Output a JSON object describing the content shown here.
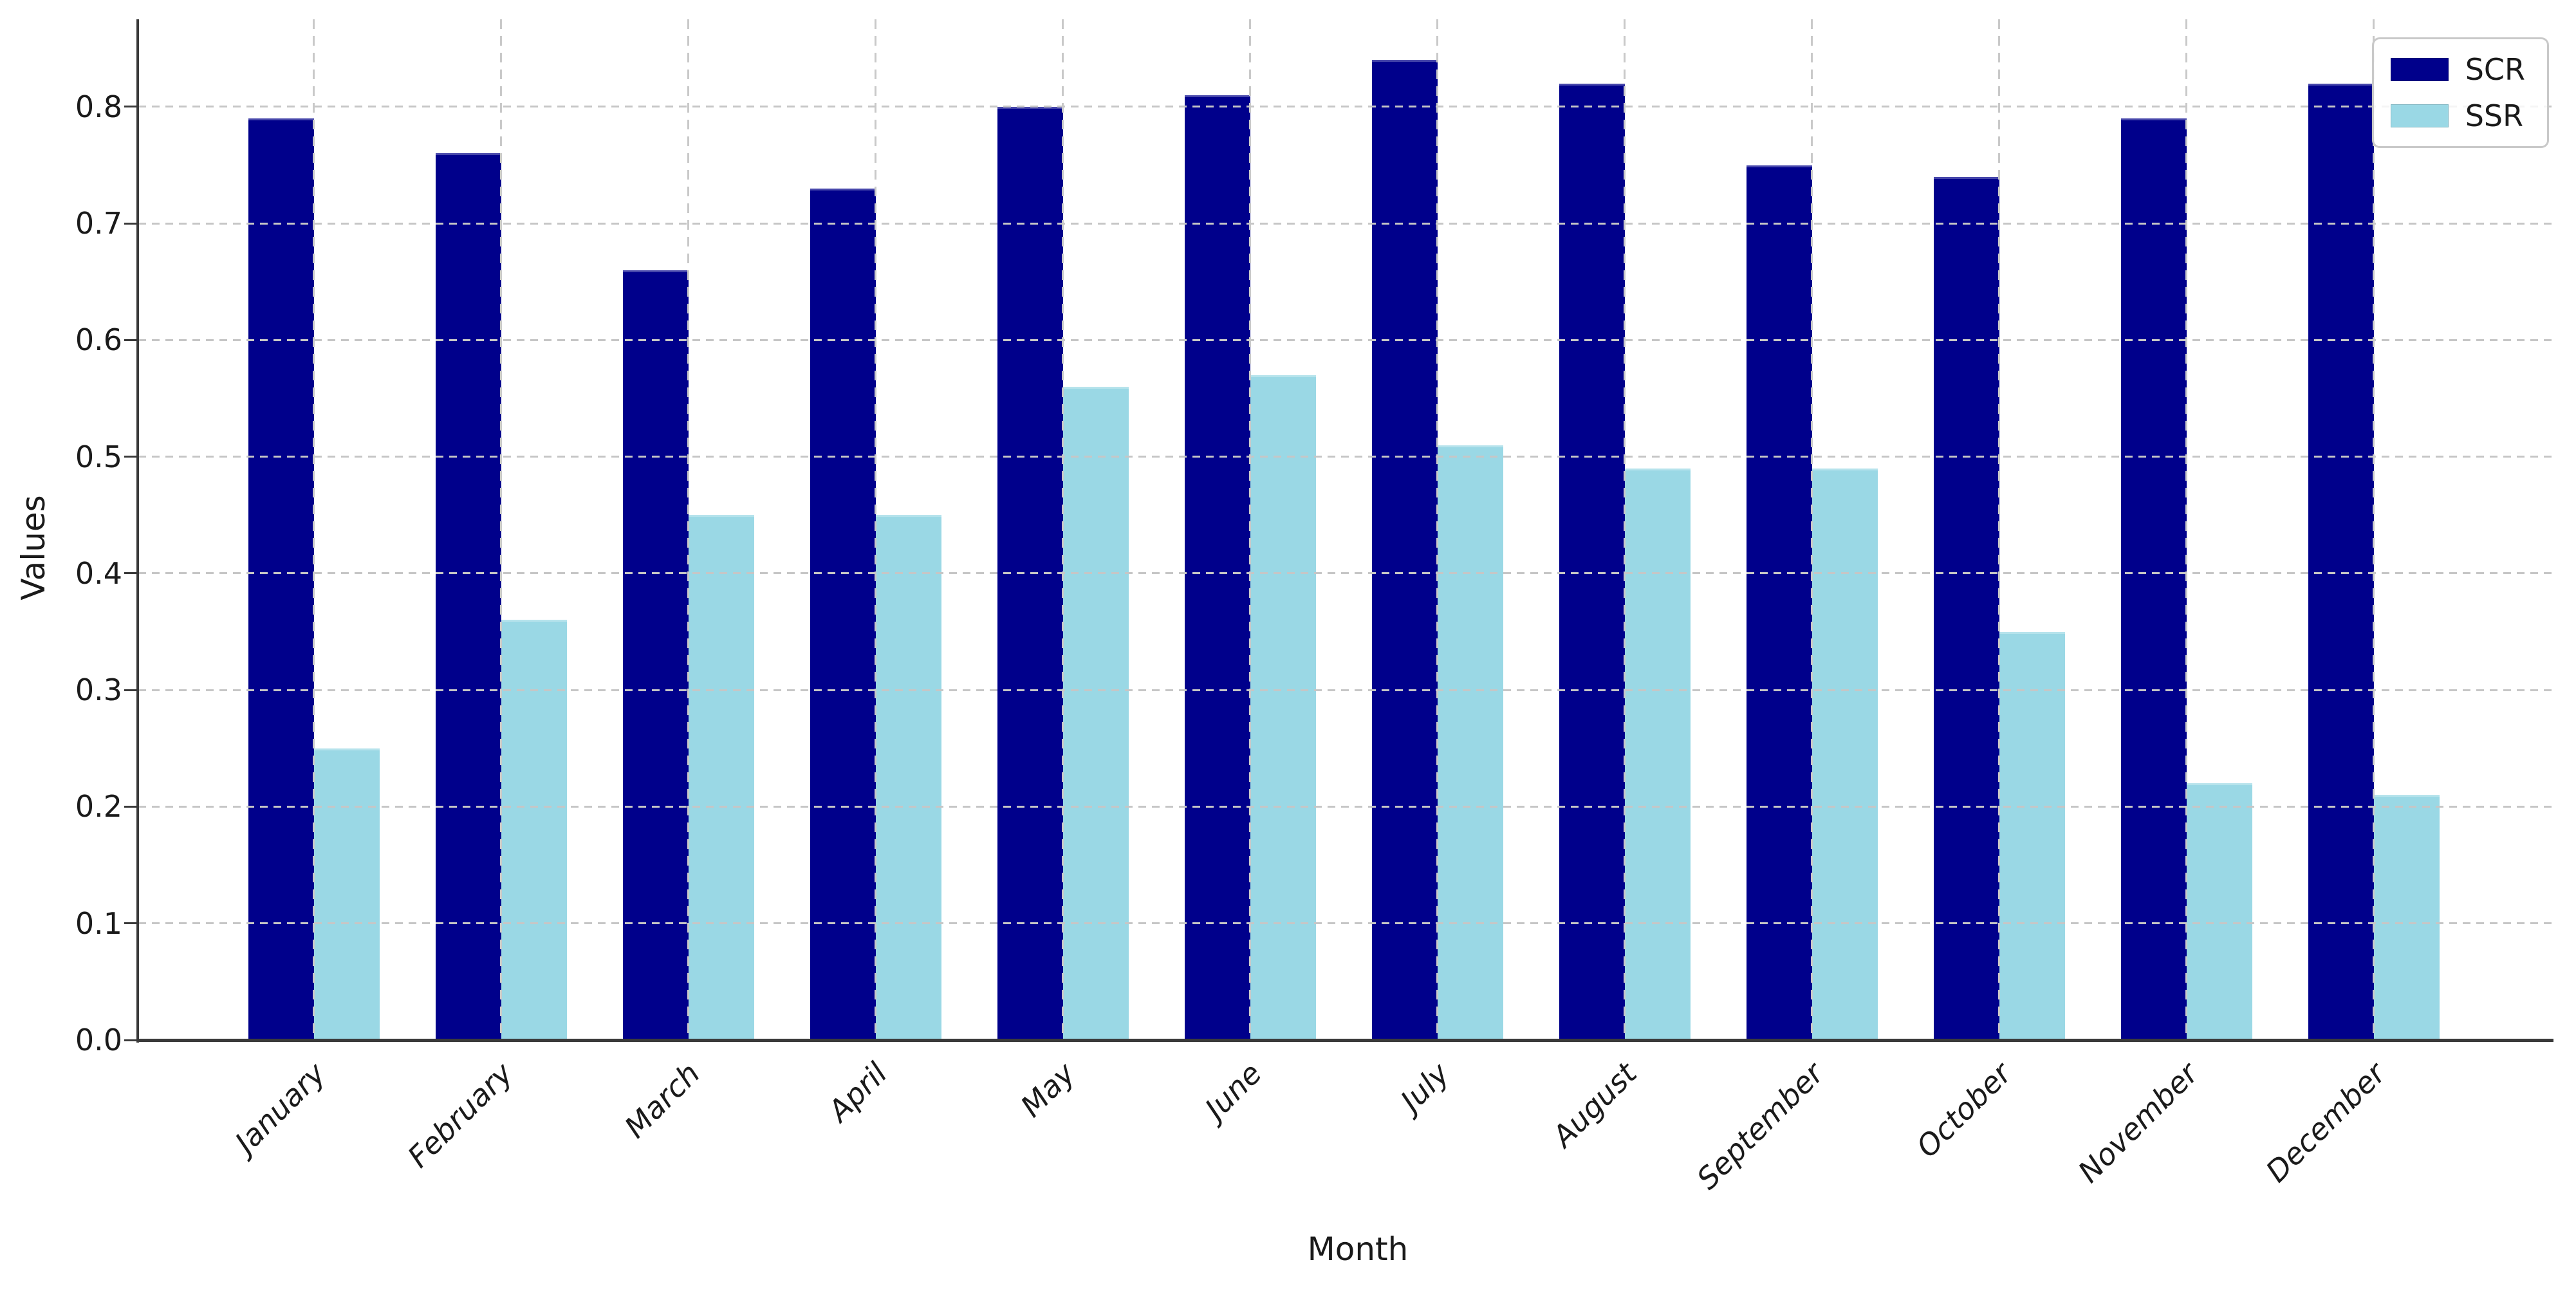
{
  "chart_data": {
    "type": "bar",
    "title": "",
    "xlabel": "Month",
    "ylabel": "Values",
    "categories": [
      "January",
      "February",
      "March",
      "April",
      "May",
      "June",
      "July",
      "August",
      "September",
      "October",
      "November",
      "December"
    ],
    "series": [
      {
        "name": "SCR",
        "color": "#00008B",
        "values": [
          0.79,
          0.76,
          0.66,
          0.73,
          0.8,
          0.81,
          0.84,
          0.82,
          0.75,
          0.74,
          0.79,
          0.82
        ]
      },
      {
        "name": "SSR",
        "color": "#9AD8E5",
        "values": [
          0.25,
          0.36,
          0.45,
          0.45,
          0.56,
          0.57,
          0.51,
          0.49,
          0.49,
          0.35,
          0.22,
          0.21
        ]
      }
    ],
    "ylim": [
      0,
      0.875
    ],
    "yticks": [
      0.0,
      0.1,
      0.2,
      0.3,
      0.4,
      0.5,
      0.6,
      0.7,
      0.8
    ],
    "ytick_labels": [
      "0.0",
      "0.1",
      "0.2",
      "0.3",
      "0.4",
      "0.5",
      "0.6",
      "0.7",
      "0.8"
    ],
    "xtick_rotation": 45,
    "grid": true,
    "grid_style": "dashed",
    "grid_color": "#c9c9c9",
    "legend_position": "upper right",
    "axis_color": "#3a3a3a",
    "background_color": "#ffffff"
  }
}
